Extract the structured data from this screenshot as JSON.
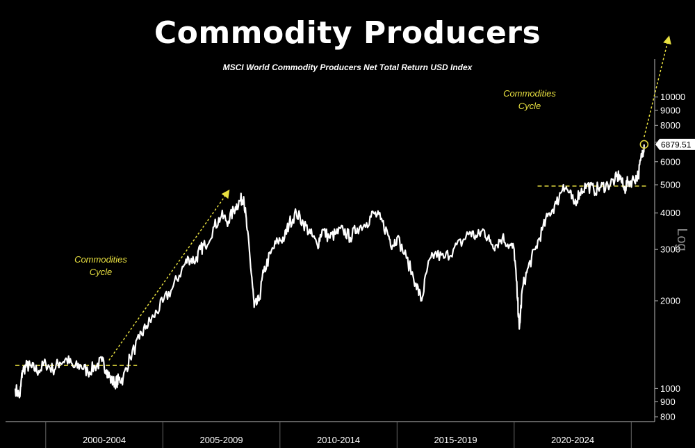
{
  "chart_data": {
    "type": "line",
    "title": "Commodity Producers",
    "subtitle": "MSCI World Commodity Producers Net Total Return USD Index",
    "scale_label": "Log",
    "y_scale": "log",
    "ylim": [
      770,
      13500
    ],
    "xlim": [
      1998.7,
      2026.0
    ],
    "y_ticks": [
      800,
      900,
      1000,
      2000,
      3000,
      4000,
      5000,
      6000,
      7000,
      8000,
      9000,
      10000
    ],
    "y_tick_labels": [
      "800",
      "900",
      "1000",
      "2000",
      "3000",
      "4000",
      "5000",
      "6000",
      "7000",
      "8000",
      "9000",
      "10000"
    ],
    "categories": [
      "2000-2004",
      "2005-2009",
      "2010-2014",
      "2015-2019",
      "2020-2024"
    ],
    "category_ranges": [
      [
        2000,
        2005
      ],
      [
        2005,
        2010
      ],
      [
        2010,
        2015
      ],
      [
        2015,
        2020
      ],
      [
        2020,
        2025
      ]
    ],
    "last_value_label": "6879.51",
    "grid": false,
    "colors": {
      "series": "#ffffff",
      "annotation": "#e8e040",
      "background": "#000000"
    },
    "series": [
      {
        "x": [
          1998.7,
          1998.9,
          1999.0,
          1999.2,
          1999.4,
          1999.7,
          2000.0,
          2000.3,
          2000.6,
          2000.9,
          2001.2,
          2001.5,
          2001.8,
          2002.1,
          2002.4,
          2002.6,
          2002.8,
          2003.0,
          2003.1,
          2003.3,
          2003.6,
          2004.0,
          2004.3,
          2004.6,
          2005.0,
          2005.4,
          2005.8,
          2006.1,
          2006.4,
          2006.6,
          2006.8,
          2007.2,
          2007.5,
          2007.8,
          2008.1,
          2008.3,
          2008.45,
          2008.6,
          2008.8,
          2008.9,
          2009.1,
          2009.3,
          2009.6,
          2009.9,
          2010.2,
          2010.4,
          2010.7,
          2011.0,
          2011.3,
          2011.6,
          2011.8,
          2012.1,
          2012.4,
          2012.7,
          2013.0,
          2013.3,
          2013.7,
          2014.0,
          2014.3,
          2014.6,
          2014.8,
          2015.0,
          2015.4,
          2015.8,
          2016.05,
          2016.3,
          2016.6,
          2017.0,
          2017.4,
          2017.8,
          2018.1,
          2018.4,
          2018.7,
          2018.95,
          2019.2,
          2019.5,
          2019.8,
          2020.0,
          2020.15,
          2020.22,
          2020.35,
          2020.6,
          2020.9,
          2021.2,
          2021.5,
          2021.8,
          2022.1,
          2022.35,
          2022.55,
          2022.8,
          2023.1,
          2023.4,
          2023.7,
          2024.0,
          2024.3,
          2024.5,
          2024.7,
          2024.85,
          2025.1,
          2025.3,
          2025.45,
          2025.55
        ],
        "y": [
          1000,
          940,
          1150,
          1200,
          1180,
          1150,
          1220,
          1160,
          1230,
          1260,
          1180,
          1200,
          1140,
          1190,
          1240,
          1160,
          1060,
          1050,
          1070,
          1080,
          1280,
          1480,
          1640,
          1760,
          1980,
          2200,
          2550,
          2800,
          2750,
          3000,
          3100,
          3600,
          3900,
          3750,
          4200,
          4400,
          4550,
          3500,
          2400,
          1900,
          2000,
          2500,
          2900,
          3200,
          3300,
          3700,
          4000,
          3700,
          3400,
          3100,
          3500,
          3300,
          3400,
          3500,
          3300,
          3550,
          3700,
          4000,
          3800,
          3400,
          3100,
          3300,
          2800,
          2300,
          2000,
          2600,
          2900,
          2800,
          3000,
          3200,
          3450,
          3300,
          3500,
          3200,
          3100,
          3300,
          3100,
          3000,
          2000,
          1600,
          2200,
          2600,
          3000,
          3500,
          4000,
          4300,
          5000,
          4700,
          4300,
          4700,
          5000,
          4800,
          4900,
          5000,
          5200,
          5400,
          4800,
          5100,
          5200,
          5400,
          6300,
          6879.51
        ]
      }
    ],
    "annotations": [
      {
        "text_lines": [
          "Commodities",
          "Cycle"
        ],
        "from": [
          2002.7,
          1250
        ],
        "to": [
          2007.8,
          4750
        ]
      },
      {
        "text_lines": [
          "Commodities",
          "Cycle"
        ],
        "from": [
          2025.55,
          7300
        ],
        "to": [
          2026.6,
          16000
        ]
      }
    ],
    "reference_lines": [
      {
        "from_x": 1998.7,
        "to_x": 2003.9,
        "y": 1200
      },
      {
        "from_x": 2021.0,
        "to_x": 2025.7,
        "y": 4950
      }
    ],
    "highlight_point": [
      2025.55,
      6879.51
    ]
  }
}
